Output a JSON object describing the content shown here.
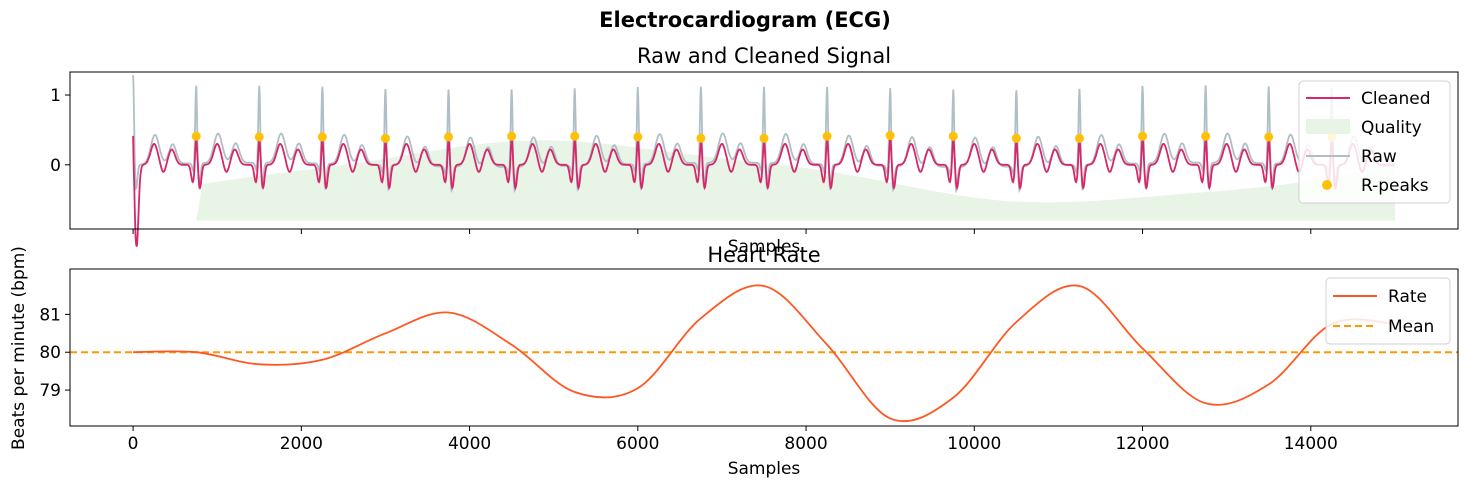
{
  "figure": {
    "title": "Electrocardiogram (ECG)"
  },
  "chart_data": [
    {
      "type": "line",
      "title": "Raw and Cleaned Signal",
      "xlabel": "Samples",
      "ylabel": "",
      "xlim": [
        -750,
        15750
      ],
      "ylim": [
        -0.92,
        1.33
      ],
      "yticks": [
        0,
        1
      ],
      "yticklabels": [
        "0",
        "1"
      ],
      "xticks": [
        0,
        2000,
        4000,
        6000,
        8000,
        10000,
        12000,
        14000
      ],
      "xticklabels_visible": false,
      "legend_position": "upper right",
      "legend": [
        "Cleaned",
        "Quality",
        "Raw",
        "R-peaks"
      ],
      "series": [
        {
          "name": "Cleaned",
          "color": "#d6276b",
          "style": "line"
        },
        {
          "name": "Quality",
          "color": "#e8f4e6",
          "style": "area"
        },
        {
          "name": "Raw",
          "color": "#b0bec5",
          "style": "line"
        },
        {
          "name": "R-peaks",
          "color": "#ffc107",
          "style": "scatter",
          "x": [
            750,
            1500,
            2250,
            3000,
            3750,
            4500,
            5250,
            6000,
            6750,
            7500,
            8250,
            9000,
            9750,
            10500,
            11250,
            12000,
            12750,
            13500,
            14250
          ],
          "y": [
            0.41,
            0.4,
            0.4,
            0.38,
            0.4,
            0.41,
            0.41,
            0.4,
            0.38,
            0.38,
            0.41,
            0.42,
            0.41,
            0.38,
            0.38,
            0.41,
            0.41,
            0.4,
            0.4
          ]
        }
      ]
    },
    {
      "type": "line",
      "title": "Heart Rate",
      "xlabel": "Samples",
      "ylabel": "Beats per minute (bpm)",
      "xlim": [
        -750,
        15750
      ],
      "ylim": [
        78.05,
        82.2
      ],
      "yticks": [
        79,
        80,
        81
      ],
      "yticklabels": [
        "79",
        "80",
        "81"
      ],
      "xticks": [
        0,
        2000,
        4000,
        6000,
        8000,
        10000,
        12000,
        14000
      ],
      "xticklabels": [
        "0",
        "2000",
        "4000",
        "6000",
        "8000",
        "10000",
        "12000",
        "14000"
      ],
      "legend_position": "upper right",
      "legend": [
        "Rate",
        "Mean"
      ],
      "series": [
        {
          "name": "Rate",
          "color": "#ff5722",
          "x": [
            0,
            750,
            1500,
            2250,
            3000,
            3750,
            4500,
            5250,
            6000,
            6750,
            7500,
            8250,
            9000,
            9750,
            10500,
            11250,
            12000,
            12750,
            13500,
            14250,
            15000
          ],
          "y": [
            80.0,
            80.0,
            79.68,
            79.8,
            80.5,
            81.05,
            80.2,
            78.95,
            79.05,
            80.9,
            81.75,
            80.2,
            78.25,
            78.8,
            80.8,
            81.75,
            80.1,
            78.65,
            79.15,
            80.75,
            80.75
          ]
        },
        {
          "name": "Mean",
          "color": "#ff9800",
          "style": "dashed",
          "y": 80.0
        }
      ]
    }
  ]
}
